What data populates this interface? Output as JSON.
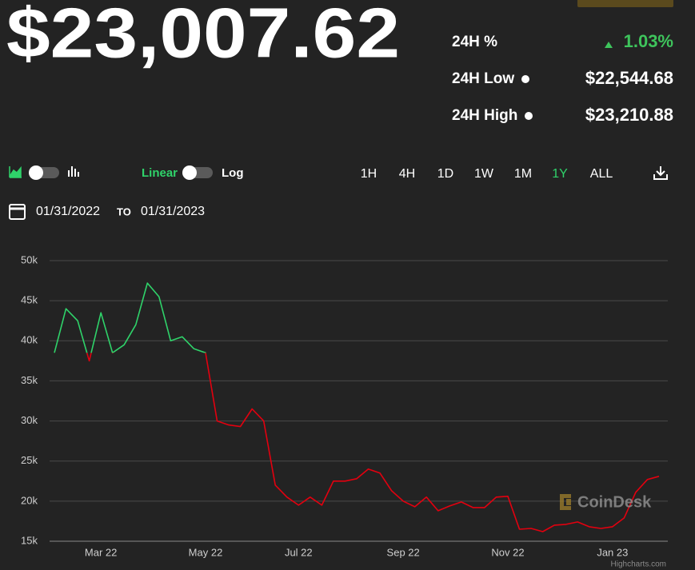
{
  "price": "$23,007.62",
  "stats": [
    {
      "label": "24H %",
      "value": "1.03%"
    },
    {
      "label": "24H Low",
      "value": "$22,544.68"
    },
    {
      "label": "24H High",
      "value": "$23,210.88"
    }
  ],
  "scale_toggle": {
    "on": "Linear",
    "off": "Log"
  },
  "ranges": [
    "1H",
    "4H",
    "1D",
    "1W",
    "1M",
    "1Y",
    "ALL"
  ],
  "active_range": "1Y",
  "date_from": "01/31/2022",
  "date_sep": "TO",
  "date_to": "01/31/2023",
  "watermark": "CoinDesk",
  "credits": "Highcharts.com",
  "chart_data": {
    "type": "line",
    "categories": [
      null,
      null,
      null,
      null,
      "Mar 22",
      null,
      null,
      null,
      null,
      null,
      null,
      null,
      null,
      "May 22",
      null,
      null,
      null,
      null,
      null,
      null,
      null,
      "Jul 22",
      null,
      null,
      null,
      null,
      null,
      null,
      null,
      null,
      "Sep 22",
      null,
      null,
      null,
      null,
      null,
      null,
      null,
      null,
      "Nov 22",
      null,
      null,
      null,
      null,
      null,
      null,
      null,
      null,
      "Jan 23",
      null,
      null,
      null,
      null
    ],
    "values": [
      38500,
      44000,
      42500,
      37500,
      43500,
      38500,
      39500,
      42000,
      47200,
      45500,
      40000,
      40500,
      39000,
      38500,
      30000,
      29500,
      29300,
      31500,
      30000,
      22000,
      20500,
      19500,
      20500,
      19500,
      22500,
      22500,
      22800,
      24000,
      23500,
      21300,
      20000,
      19300,
      20500,
      18800,
      19400,
      19900,
      19200,
      19200,
      20500,
      20600,
      16500,
      16600,
      16200,
      17000,
      17100,
      17400,
      16800,
      16600,
      16800,
      17900,
      21100,
      22700,
      23100
    ],
    "colors": {
      "up": "#2fd36a",
      "down": "#e3000f"
    },
    "ylim": [
      15000,
      50000
    ],
    "yticks": [
      {
        "value": 15000,
        "label": "15k"
      },
      {
        "value": 20000,
        "label": "20k"
      },
      {
        "value": 25000,
        "label": "25k"
      },
      {
        "value": 30000,
        "label": "30k"
      },
      {
        "value": 35000,
        "label": "35k"
      },
      {
        "value": 40000,
        "label": "40k"
      },
      {
        "value": 45000,
        "label": "45k"
      },
      {
        "value": 50000,
        "label": "50k"
      }
    ],
    "grid": true
  }
}
